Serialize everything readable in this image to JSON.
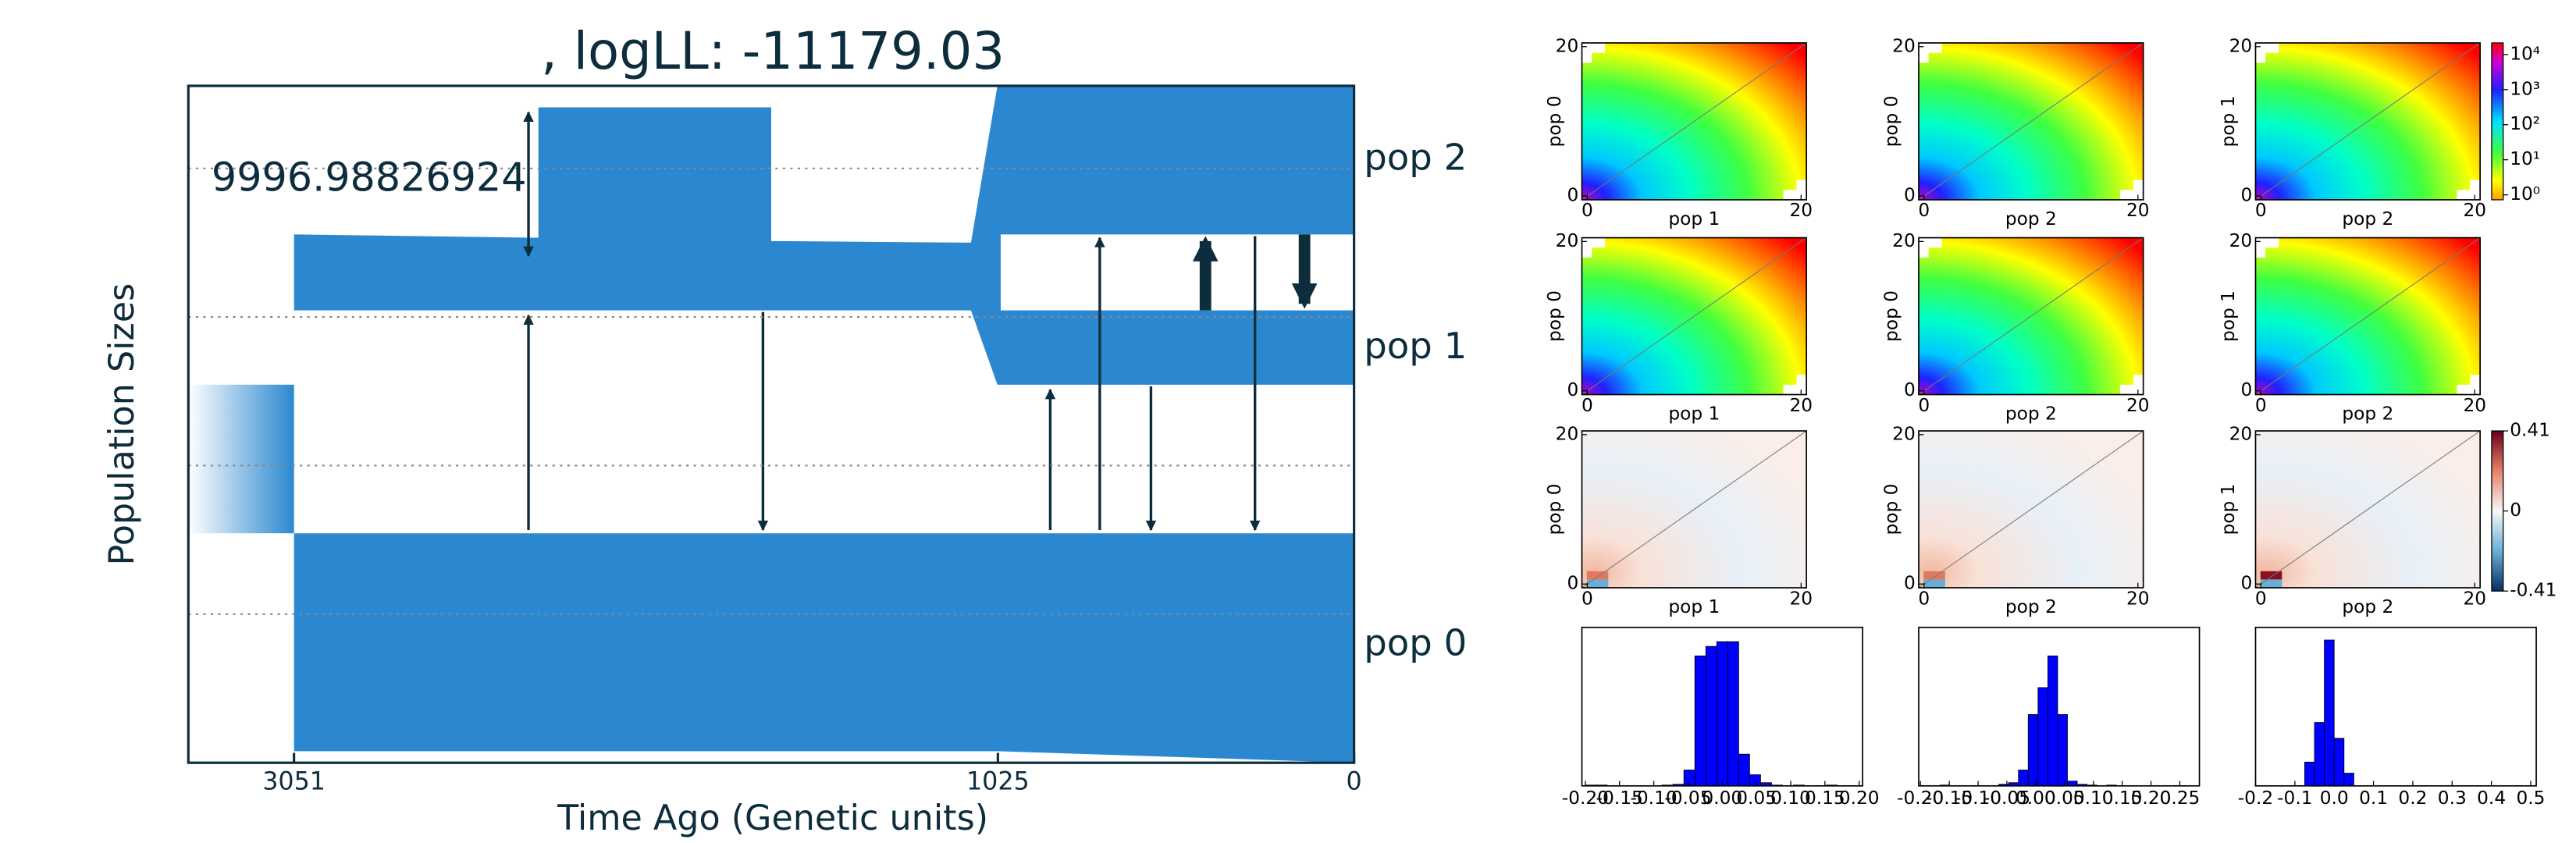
{
  "chart_data": [
    {
      "type": "demography",
      "title": ", logLL:  -11179.03",
      "xlabel": "Time Ago (Genetic units)",
      "ylabel": "Population Sizes",
      "xlim": [
        3355,
        0
      ],
      "xticks": [
        3051,
        1025,
        0
      ],
      "annotation": "9996.98826924",
      "populations": [
        "pop 2",
        "pop 1",
        "pop 0"
      ],
      "color": "#2b88d0"
    },
    {
      "type": "spectra",
      "panels": [
        {
          "ylabel": "pop 0",
          "xlabel": "pop 1",
          "colormap": "rainbow",
          "xlim": [
            -0.5,
            20.5
          ],
          "ylim": [
            -0.5,
            20.5
          ],
          "xticks": [
            0,
            20
          ],
          "yticks": [
            0,
            20
          ]
        },
        {
          "ylabel": "pop 0",
          "xlabel": "pop 2",
          "colormap": "rainbow",
          "xlim": [
            -0.5,
            20.5
          ],
          "ylim": [
            -0.5,
            20.5
          ],
          "xticks": [
            0,
            20
          ],
          "yticks": [
            0,
            20
          ]
        },
        {
          "ylabel": "pop 1",
          "xlabel": "pop 2",
          "colormap": "rainbow",
          "xlim": [
            -0.5,
            20.5
          ],
          "ylim": [
            -0.5,
            20.5
          ],
          "xticks": [
            0,
            20
          ],
          "yticks": [
            0,
            20
          ]
        },
        {
          "ylabel": "pop 0",
          "xlabel": "pop 1",
          "colormap": "rainbow",
          "xlim": [
            -0.5,
            20.5
          ],
          "ylim": [
            -0.5,
            20.5
          ],
          "xticks": [
            0,
            20
          ],
          "yticks": [
            0,
            20
          ]
        },
        {
          "ylabel": "pop 0",
          "xlabel": "pop 2",
          "colormap": "rainbow",
          "xlim": [
            -0.5,
            20.5
          ],
          "ylim": [
            -0.5,
            20.5
          ],
          "xticks": [
            0,
            20
          ],
          "yticks": [
            0,
            20
          ]
        },
        {
          "ylabel": "pop 1",
          "xlabel": "pop 2",
          "colormap": "rainbow",
          "xlim": [
            -0.5,
            20.5
          ],
          "ylim": [
            -0.5,
            20.5
          ],
          "xticks": [
            0,
            20
          ],
          "yticks": [
            0,
            20
          ]
        },
        {
          "ylabel": "pop 0",
          "xlabel": "pop 1",
          "colormap": "residual",
          "xlim": [
            -0.5,
            20.5
          ],
          "ylim": [
            -0.5,
            20.5
          ],
          "xticks": [
            0,
            20
          ],
          "yticks": [
            0,
            20
          ]
        },
        {
          "ylabel": "pop 0",
          "xlabel": "pop 2",
          "colormap": "residual",
          "xlim": [
            -0.5,
            20.5
          ],
          "ylim": [
            -0.5,
            20.5
          ],
          "xticks": [
            0,
            20
          ],
          "yticks": [
            0,
            20
          ]
        },
        {
          "ylabel": "pop 1",
          "xlabel": "pop 2",
          "colormap": "residual",
          "xlim": [
            -0.5,
            20.5
          ],
          "ylim": [
            -0.5,
            20.5
          ],
          "xticks": [
            0,
            20
          ],
          "yticks": [
            0,
            20
          ]
        }
      ],
      "colorbars": [
        {
          "colormap": "rainbow",
          "ylim": [
            -0.14,
            4.33
          ],
          "yticks": [
            {
              "value": 4,
              "label": "10⁴"
            },
            {
              "value": 3,
              "label": "10³"
            },
            {
              "value": 2,
              "label": "10²"
            },
            {
              "value": 1,
              "label": "10¹"
            },
            {
              "value": 0,
              "label": "10⁰"
            }
          ]
        },
        {
          "colormap": "residual",
          "ylim": [
            -0.41,
            0.41
          ],
          "yticks": [
            0.41,
            0,
            -0.41
          ]
        }
      ]
    },
    {
      "type": "histogram",
      "color": "#0000ff",
      "xlim": [
        -0.205,
        0.205
      ],
      "ylim": [
        0,
        100
      ],
      "bins": [
        -0.2,
        -0.184,
        -0.168,
        -0.152,
        -0.136,
        -0.12,
        -0.104,
        -0.088,
        -0.072,
        -0.056,
        -0.04,
        -0.024,
        -0.008,
        0.008,
        0.024,
        0.04,
        0.056,
        0.072,
        0.088,
        0.104,
        0.12,
        0.136,
        0.152,
        0.168,
        0.184,
        0.2
      ],
      "values": [
        0.5,
        0.5,
        0,
        0,
        0,
        0,
        0,
        0.5,
        1,
        10,
        82,
        88,
        91,
        91,
        20,
        7,
        2,
        0.5,
        0,
        0.5,
        0,
        0,
        0.5,
        0,
        0
      ],
      "xticks": [
        {
          "value": -0.2,
          "label": "-0.20"
        },
        {
          "value": -0.15,
          "label": "-0.15"
        },
        {
          "value": -0.1,
          "label": "-0.10"
        },
        {
          "value": -0.05,
          "label": "-0.05"
        },
        {
          "value": 0,
          "label": "0.00"
        },
        {
          "value": 0.05,
          "label": "0.05"
        },
        {
          "value": 0.1,
          "label": "0.10"
        },
        {
          "value": 0.15,
          "label": "0.15"
        },
        {
          "value": 0.2,
          "label": "0.20"
        }
      ]
    },
    {
      "type": "histogram",
      "color": "#0000ff",
      "xlim": [
        -0.203,
        0.284
      ],
      "ylim": [
        0,
        100
      ],
      "bins": [
        -0.2,
        -0.183,
        -0.166,
        -0.149,
        -0.132,
        -0.115,
        -0.098,
        -0.081,
        -0.064,
        -0.047,
        -0.03,
        -0.013,
        0.004,
        0.021,
        0.038,
        0.055,
        0.072,
        0.089,
        0.106,
        0.123,
        0.14,
        0.157,
        0.174,
        0.191,
        0.208,
        0.225,
        0.242
      ],
      "values": [
        0,
        0,
        0.5,
        0,
        0,
        0,
        0,
        0,
        1,
        2,
        10,
        45,
        62,
        82,
        45,
        3,
        1,
        0.5,
        0,
        0.5,
        0,
        0,
        0,
        0,
        0,
        0
      ],
      "xticks": [
        {
          "value": -0.2,
          "label": "-0.20"
        },
        {
          "value": -0.15,
          "label": "-0.15"
        },
        {
          "value": -0.1,
          "label": "-0.10"
        },
        {
          "value": -0.05,
          "label": "-0.05"
        },
        {
          "value": 0,
          "label": "0.00"
        },
        {
          "value": 0.05,
          "label": "0.05"
        },
        {
          "value": 0.1,
          "label": "0.10"
        },
        {
          "value": 0.15,
          "label": "0.15"
        },
        {
          "value": 0.2,
          "label": "0.20"
        },
        {
          "value": 0.25,
          "label": "0.25"
        }
      ]
    },
    {
      "type": "histogram",
      "color": "#0000ff",
      "xlim": [
        -0.2,
        0.514
      ],
      "ylim": [
        0,
        100
      ],
      "bins": [
        -0.075,
        -0.05,
        -0.025,
        0,
        0.025,
        0.05
      ],
      "values": [
        15,
        40,
        92,
        30,
        8
      ],
      "xticks": [
        -0.2,
        -0.1,
        {
          "value": 0,
          "label": "0.0"
        },
        0.1,
        0.2,
        0.3,
        0.4,
        0.5
      ]
    }
  ]
}
